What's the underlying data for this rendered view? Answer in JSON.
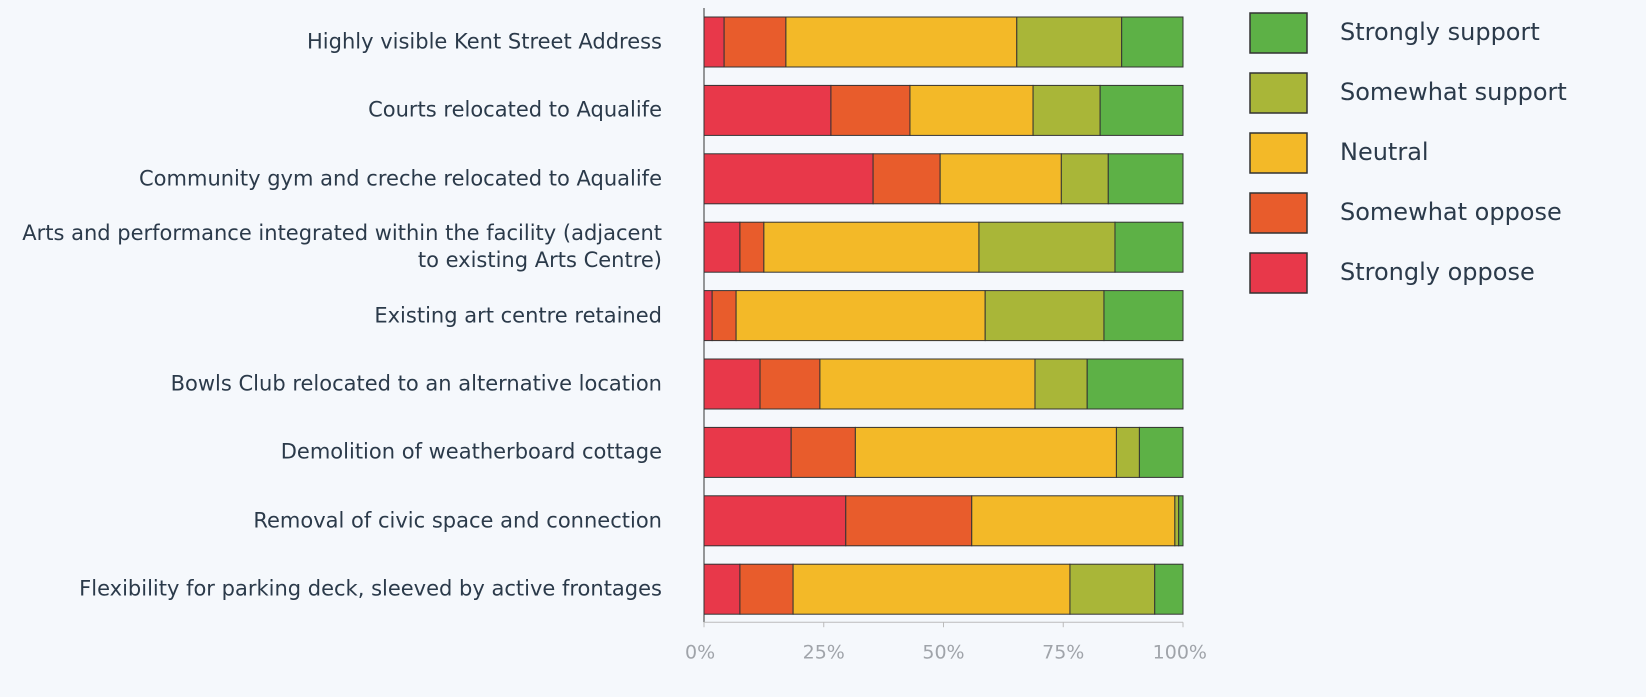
{
  "chart_data": {
    "type": "stacked_bar_horizontal",
    "categories": [
      "Highly visible Kent Street Address",
      "Courts relocated to Aqualife",
      "Community gym and creche relocated to Aqualife",
      "Arts and performance integrated within the facility (adjacent to existing Arts Centre)",
      "Existing art centre retained",
      "Bowls Club relocated to an alternative location",
      "Demolition of weatherboard cottage",
      "Removal of civic space and connection",
      "Flexibility for parking deck, sleeved by active frontages"
    ],
    "series": [
      {
        "name": "Strongly oppose",
        "color": "#e8384a",
        "values": [
          4.2,
          26.5,
          35.3,
          7.5,
          1.7,
          11.7,
          18.2,
          29.6,
          7.5
        ]
      },
      {
        "name": "Somewhat oppose",
        "color": "#e85c2c",
        "values": [
          12.9,
          16.5,
          14,
          5,
          5,
          12.5,
          13.4,
          26.3,
          11.1
        ]
      },
      {
        "name": "Neutral",
        "color": "#f3b928",
        "values": [
          48.2,
          25.7,
          25.3,
          44.9,
          52,
          44.9,
          54.5,
          42.4,
          57.8
        ]
      },
      {
        "name": "Somewhat support",
        "color": "#a9b638",
        "values": [
          21.9,
          14,
          9.8,
          28.4,
          24.8,
          10.9,
          4.8,
          0.8,
          17.7
        ]
      },
      {
        "name": "Strongly support",
        "color": "#5db146",
        "values": [
          12.8,
          17.3,
          15.6,
          14.2,
          16.5,
          20,
          9.1,
          0.9,
          5.9
        ]
      }
    ],
    "xlim": [
      0,
      100
    ],
    "xticks": [
      {
        "value": 0,
        "label": "0%"
      },
      {
        "value": 25,
        "label": "25%"
      },
      {
        "value": 50,
        "label": "50%"
      },
      {
        "value": 75,
        "label": "75%"
      },
      {
        "value": 100,
        "label": "100%"
      }
    ],
    "legend": "top-right"
  }
}
